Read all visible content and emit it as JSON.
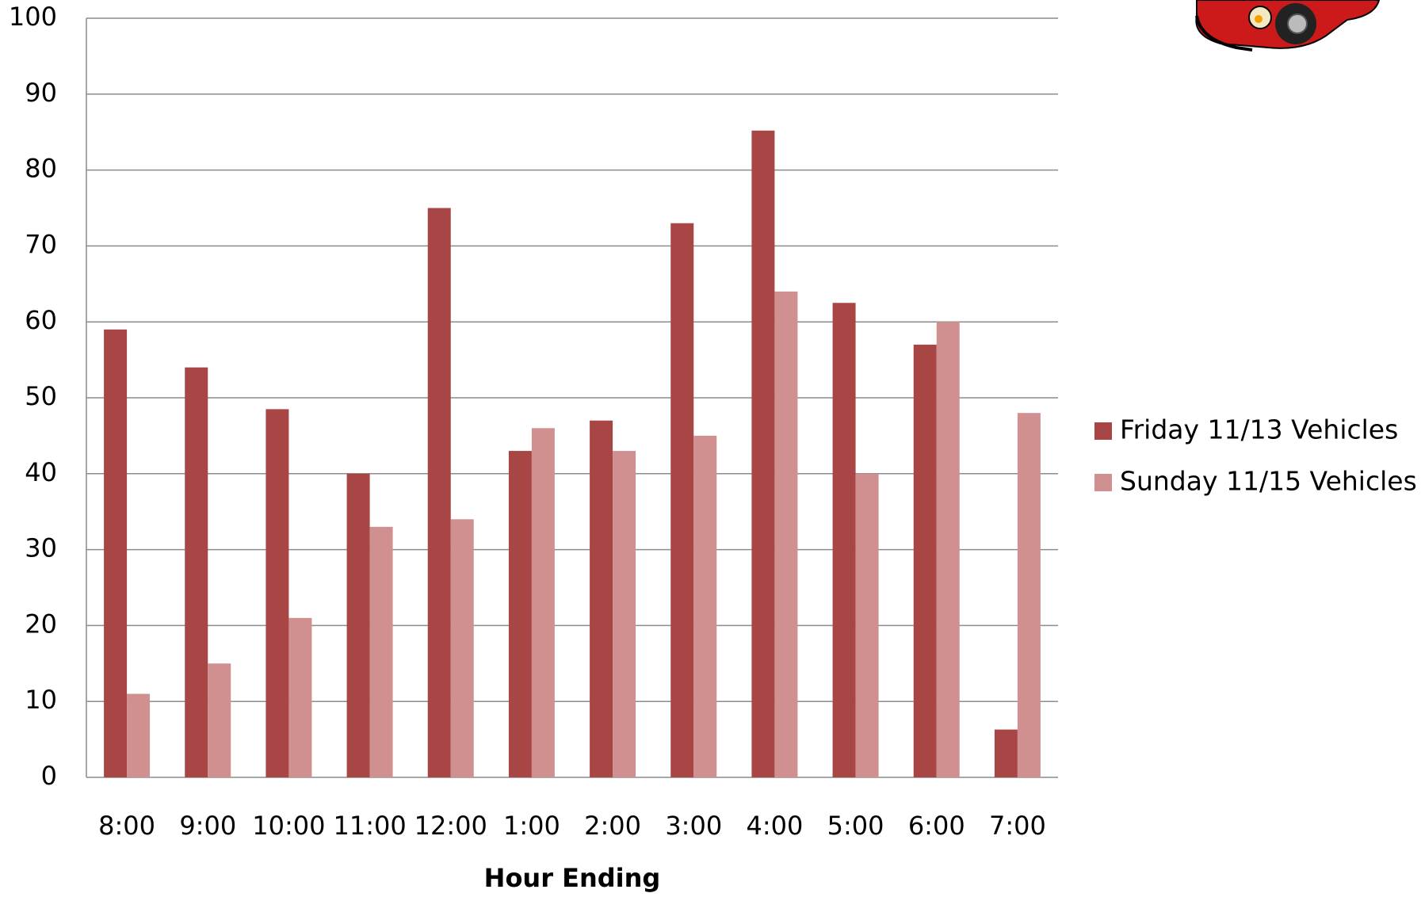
{
  "chart_data": {
    "type": "bar",
    "x_label": "Hour Ending",
    "categories": [
      "8:00",
      "9:00",
      "10:00",
      "11:00",
      "12:00",
      "1:00",
      "2:00",
      "3:00",
      "4:00",
      "5:00",
      "6:00",
      "7:00"
    ],
    "series": [
      {
        "name": "Friday 11/13 Vehicles",
        "color": "#a84646",
        "values": [
          59,
          54,
          48.5,
          40,
          75,
          43,
          47,
          73,
          85.2,
          62.5,
          57,
          6.3
        ]
      },
      {
        "name": "Sunday 11/15 Vehicles",
        "color": "#d09090",
        "values": [
          11,
          15,
          21,
          33,
          34,
          46,
          43,
          45,
          64,
          40,
          60,
          48
        ]
      }
    ],
    "ylim": [
      0,
      100
    ],
    "yticks": [
      0,
      10,
      20,
      30,
      40,
      50,
      60,
      70,
      80,
      90,
      100
    ],
    "grid": true,
    "legend": "right"
  }
}
